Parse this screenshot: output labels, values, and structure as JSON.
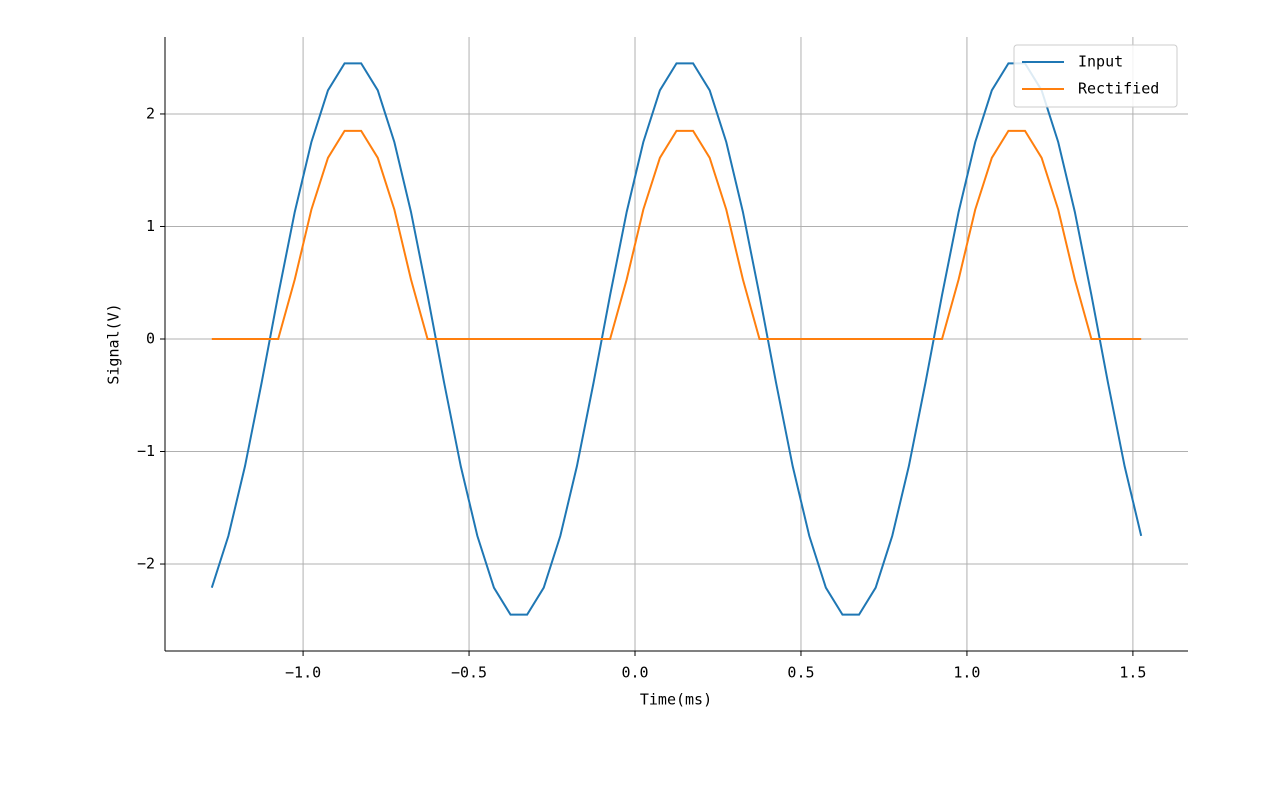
{
  "chart_data": {
    "type": "line",
    "x_label": "Time(ms)",
    "y_label": "Signal(V)",
    "x": [
      -1.275,
      -1.225,
      -1.175,
      -1.125,
      -1.075,
      -1.025,
      -0.975,
      -0.925,
      -0.875,
      -0.825,
      -0.775,
      -0.725,
      -0.675,
      -0.625,
      -0.575,
      -0.525,
      -0.475,
      -0.425,
      -0.375,
      -0.325,
      -0.275,
      -0.225,
      -0.175,
      -0.125,
      -0.075,
      -0.025,
      0.025,
      0.075,
      0.125,
      0.175,
      0.225,
      0.275,
      0.325,
      0.375,
      0.425,
      0.475,
      0.525,
      0.575,
      0.625,
      0.675,
      0.725,
      0.775,
      0.825,
      0.875,
      0.925,
      0.975,
      1.025,
      1.075,
      1.125,
      1.175,
      1.225,
      1.275,
      1.325,
      1.375,
      1.425,
      1.475,
      1.525
    ],
    "series": [
      {
        "name": "Input",
        "color": "#1f77b4",
        "values": [
          -2.21,
          -1.75,
          -1.13,
          -0.39,
          0.39,
          1.13,
          1.75,
          2.21,
          2.45,
          2.45,
          2.21,
          1.75,
          1.13,
          0.39,
          -0.39,
          -1.13,
          -1.75,
          -2.21,
          -2.45,
          -2.45,
          -2.21,
          -1.75,
          -1.13,
          -0.39,
          0.39,
          1.13,
          1.75,
          2.21,
          2.45,
          2.45,
          2.21,
          1.75,
          1.13,
          0.39,
          -0.39,
          -1.13,
          -1.75,
          -2.21,
          -2.45,
          -2.45,
          -2.21,
          -1.75,
          -1.13,
          -0.39,
          0.39,
          1.13,
          1.75,
          2.21,
          2.45,
          2.45,
          2.21,
          1.75,
          1.13,
          0.39,
          -0.39,
          -1.13,
          -1.75
        ]
      },
      {
        "name": "Rectified",
        "color": "#ff7f0e",
        "values": [
          0,
          0,
          0,
          0,
          0,
          0.53,
          1.15,
          1.61,
          1.85,
          1.85,
          1.61,
          1.15,
          0.53,
          0,
          0,
          0,
          0,
          0,
          0,
          0,
          0,
          0,
          0,
          0,
          0,
          0.53,
          1.15,
          1.61,
          1.85,
          1.85,
          1.61,
          1.15,
          0.53,
          0,
          0,
          0,
          0,
          0,
          0,
          0,
          0,
          0,
          0,
          0,
          0,
          0.53,
          1.15,
          1.61,
          1.85,
          1.85,
          1.61,
          1.15,
          0.53,
          0,
          0,
          0,
          0
        ]
      }
    ],
    "xlim": [
      -1.416,
      1.666
    ],
    "ylim": [
      -2.773,
      2.684
    ],
    "xticks": [
      {
        "value": -1,
        "label": "−1.0"
      },
      {
        "value": -0.5,
        "label": "−0.5"
      },
      {
        "value": 0,
        "label": "0.0"
      },
      0.5,
      {
        "value": 1,
        "label": "1.0"
      },
      1.5
    ],
    "yticks": [
      {
        "value": -2,
        "label": "−2"
      },
      {
        "value": -1,
        "label": "−1"
      },
      0,
      1,
      2
    ],
    "grid": true,
    "legend": "upper-right"
  }
}
